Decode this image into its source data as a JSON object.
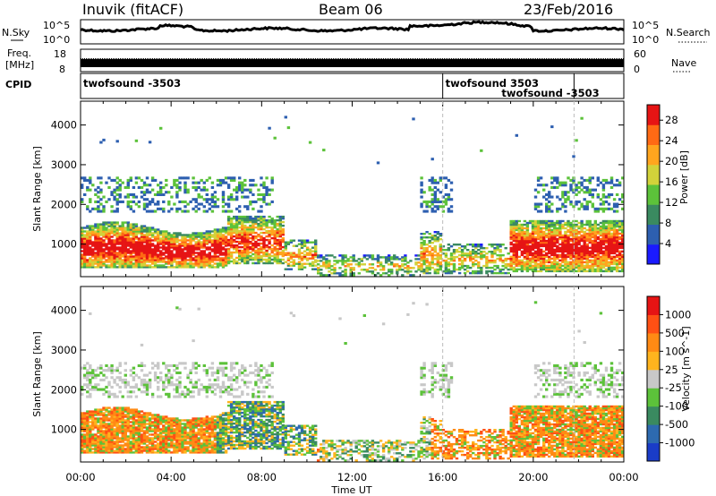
{
  "header": {
    "station": "Inuvik (fitACF)",
    "beam": "Beam 06",
    "date": "23/Feb/2016"
  },
  "top_panels": {
    "nsky_label": "N.Sky",
    "nsky_ticks": [
      "10^5",
      "10^0"
    ],
    "nsearch_label": "N.Search",
    "nsearch_ticks": [
      "10^5",
      "10^0"
    ],
    "freq_label_1": "Freq.",
    "freq_label_2": "[MHz]",
    "freq_ticks": [
      "18",
      "8"
    ],
    "nave_label": "Nave",
    "nave_ticks": [
      "60",
      "0"
    ],
    "cpid_label": "CPID",
    "cpid_entries": [
      {
        "text": "twofsound -3503",
        "at_hour": 0.0,
        "row": "upper"
      },
      {
        "text": "twofsound 3503",
        "at_hour": 16.0,
        "row": "upper"
      },
      {
        "text": "twofsound -3503",
        "at_hour": 16.0,
        "row": "lower"
      }
    ],
    "cpid_marks_hour": [
      16.0,
      21.8
    ]
  },
  "chart_data": [
    {
      "type": "heatmap",
      "title": "",
      "xlabel": "Time UT",
      "ylabel": "Slant Range [km]",
      "xlim": [
        0,
        24
      ],
      "ylim": [
        180,
        4600
      ],
      "x_ticks": [
        "00:00",
        "04:00",
        "08:00",
        "12:00",
        "16:00",
        "20:00",
        "00:00"
      ],
      "y_ticks": [
        "1000",
        "2000",
        "3000",
        "4000"
      ],
      "colorbar": {
        "label": "Power [dB]",
        "ticks": [
          "4",
          "8",
          "12",
          "16",
          "20",
          "24",
          "28"
        ],
        "range": [
          0,
          31
        ],
        "colors": [
          "#1a1aff",
          "#2d5fb0",
          "#3a8a60",
          "#5cc23a",
          "#d2d23a",
          "#ffa51e",
          "#ff6a14",
          "#e61414"
        ]
      }
    },
    {
      "type": "heatmap",
      "title": "",
      "xlabel": "Time UT",
      "ylabel": "Slant Range [km]",
      "xlim": [
        0,
        24
      ],
      "ylim": [
        180,
        4600
      ],
      "x_ticks": [
        "00:00",
        "04:00",
        "08:00",
        "12:00",
        "16:00",
        "20:00",
        "00:00"
      ],
      "y_ticks": [
        "1000",
        "2000",
        "3000",
        "4000"
      ],
      "colorbar": {
        "label": "Velocity [m s^-1]",
        "ticks": [
          "1000",
          "500",
          "100",
          "25",
          "-25",
          "-100",
          "-500",
          "-1000"
        ],
        "colors": [
          "#1a3cc8",
          "#2d6ab0",
          "#3a8a60",
          "#5cc23a",
          "#c8c8c8",
          "#ffb41e",
          "#ff8a14",
          "#ff5014",
          "#e61414"
        ]
      }
    }
  ],
  "x_axis": {
    "label": "Time UT",
    "ticks": [
      "00:00",
      "04:00",
      "08:00",
      "12:00",
      "16:00",
      "20:00",
      "00:00"
    ]
  }
}
